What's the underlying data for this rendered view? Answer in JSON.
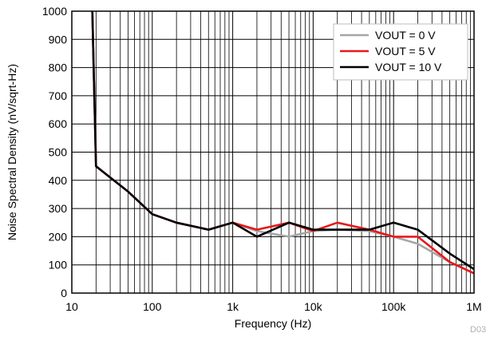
{
  "chart_data": {
    "type": "line",
    "title": "",
    "xlabel": "Frequency (Hz)",
    "ylabel": "Noise Spectral Density (nV/sqrt-Hz)",
    "xscale": "log",
    "xlim": [
      10,
      1000000
    ],
    "ylim": [
      0,
      1000
    ],
    "grid": true,
    "legend_position": "top-right",
    "x_ticks": [
      10,
      100,
      1000,
      10000,
      100000,
      1000000
    ],
    "x_tick_labels": [
      "10",
      "100",
      "1k",
      "10k",
      "100k",
      "1M"
    ],
    "y_ticks": [
      0,
      100,
      200,
      300,
      400,
      500,
      600,
      700,
      800,
      900,
      1000
    ],
    "y_tick_labels": [
      "0",
      "100",
      "200",
      "300",
      "400",
      "500",
      "600",
      "700",
      "800",
      "900",
      "1000"
    ],
    "series": [
      {
        "name": "VOUT = 0 V",
        "color": "#a6a6a6",
        "x": [
          18,
          20,
          50,
          100,
          200,
          500,
          1000,
          2000,
          5000,
          10000,
          20000,
          50000,
          100000,
          200000,
          500000,
          1000000
        ],
        "y": [
          1000,
          450,
          360,
          280,
          250,
          225,
          250,
          220,
          200,
          220,
          225,
          220,
          200,
          175,
          110,
          70
        ]
      },
      {
        "name": "VOUT = 5 V",
        "color": "#e8191c",
        "x": [
          18,
          20,
          50,
          100,
          200,
          500,
          1000,
          2000,
          5000,
          10000,
          20000,
          50000,
          100000,
          200000,
          500000,
          1000000
        ],
        "y": [
          1000,
          450,
          360,
          280,
          250,
          225,
          250,
          225,
          250,
          220,
          250,
          225,
          200,
          200,
          110,
          70
        ]
      },
      {
        "name": "VOUT = 10 V",
        "color": "#000000",
        "x": [
          18,
          20,
          50,
          100,
          200,
          500,
          1000,
          2000,
          5000,
          10000,
          20000,
          50000,
          100000,
          200000,
          500000,
          1000000
        ],
        "y": [
          1000,
          450,
          360,
          280,
          250,
          225,
          250,
          200,
          250,
          225,
          225,
          225,
          250,
          225,
          140,
          85
        ]
      }
    ],
    "figure_id": "D03"
  }
}
